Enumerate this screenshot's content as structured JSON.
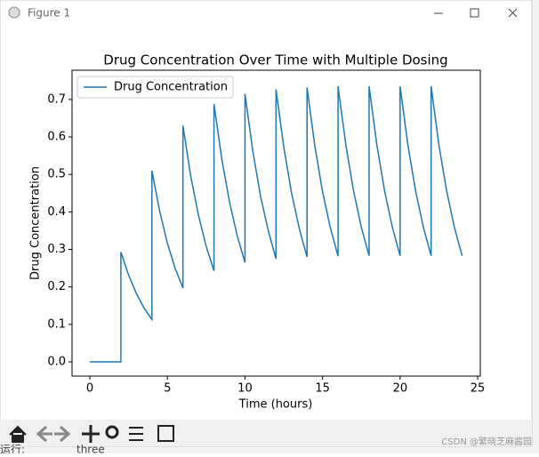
{
  "window": {
    "title": "Figure 1"
  },
  "background": {
    "run_label": "运行:",
    "run_name": "three",
    "watermark": "CSDN @繁晓芝麻酱园"
  },
  "chart_data": {
    "type": "line",
    "title": "Drug Concentration Over Time with Multiple Dosing",
    "xlabel": "Time (hours)",
    "ylabel": "Drug Concentration",
    "x": [
      0,
      2,
      2,
      2.5,
      3,
      3.5,
      4,
      4,
      4.5,
      5,
      5.5,
      6,
      6,
      6.5,
      7,
      7.5,
      8,
      8,
      8.5,
      9,
      9.5,
      10,
      10,
      10.5,
      11,
      11.5,
      12,
      12,
      12.5,
      13,
      13.5,
      14,
      14,
      14.5,
      15,
      15.5,
      16,
      16,
      16.5,
      17,
      17.5,
      18,
      18,
      18.5,
      19,
      19.5,
      20,
      20,
      20.5,
      21,
      21.5,
      22,
      22,
      22.5,
      23,
      23.5,
      24
    ],
    "series": [
      {
        "name": "Drug Concentration",
        "color": "#1f77b4",
        "values": [
          0,
          0,
          0.293,
          0.231,
          0.182,
          0.143,
          0.113,
          0.51,
          0.402,
          0.316,
          0.249,
          0.197,
          0.63,
          0.496,
          0.391,
          0.308,
          0.243,
          0.688,
          0.542,
          0.427,
          0.336,
          0.265,
          0.715,
          0.563,
          0.443,
          0.35,
          0.275,
          0.727,
          0.573,
          0.451,
          0.356,
          0.28,
          0.732,
          0.577,
          0.454,
          0.358,
          0.282,
          0.735,
          0.579,
          0.456,
          0.359,
          0.283,
          0.735,
          0.579,
          0.456,
          0.359,
          0.283,
          0.735,
          0.579,
          0.456,
          0.359,
          0.283,
          0.735,
          0.579,
          0.456,
          0.359,
          0.283
        ]
      }
    ],
    "xlim": [
      -1.15,
      25.17
    ],
    "xticks": [
      0,
      5,
      10,
      15,
      20,
      25
    ],
    "ylim": [
      -0.038,
      0.778
    ],
    "yticks": [
      {
        "value": 0,
        "label": "0.0"
      },
      0.1,
      0.2,
      0.3,
      0.4,
      0.5,
      0.6,
      0.7
    ],
    "legend": "upper left"
  }
}
